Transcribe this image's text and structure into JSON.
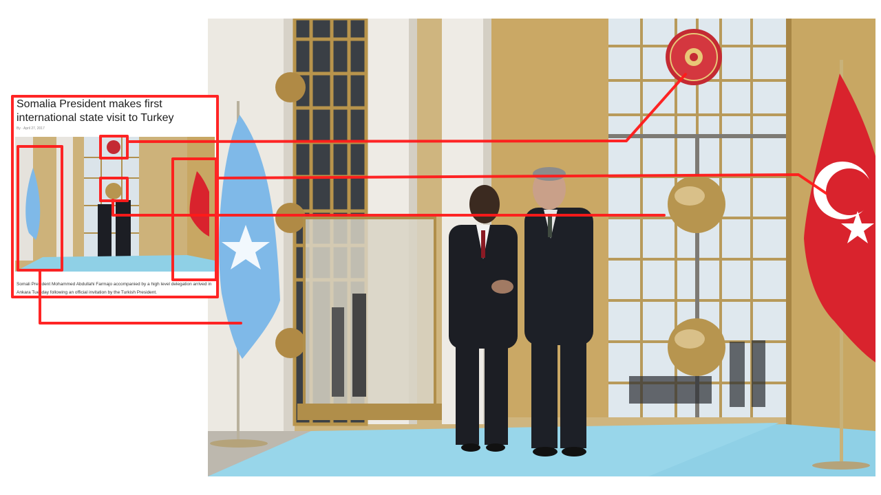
{
  "article": {
    "headline": "Somalia President makes first international state visit to Turkey",
    "byline": "By  ·  April 27, 2017",
    "caption": "Somali President Mohammed Abdullahi Farmajo accompanied by a high level delegation arrived in Ankara Tuesday following an official invitation by the Turkish President."
  },
  "colors": {
    "highlight": "#ff1a1a",
    "gold": "#c9a762",
    "carpet": "#8fd0e6",
    "somali_flag": "#7fb9e8",
    "turkish_flag": "#d9232d",
    "suit": "#1c1e24"
  }
}
